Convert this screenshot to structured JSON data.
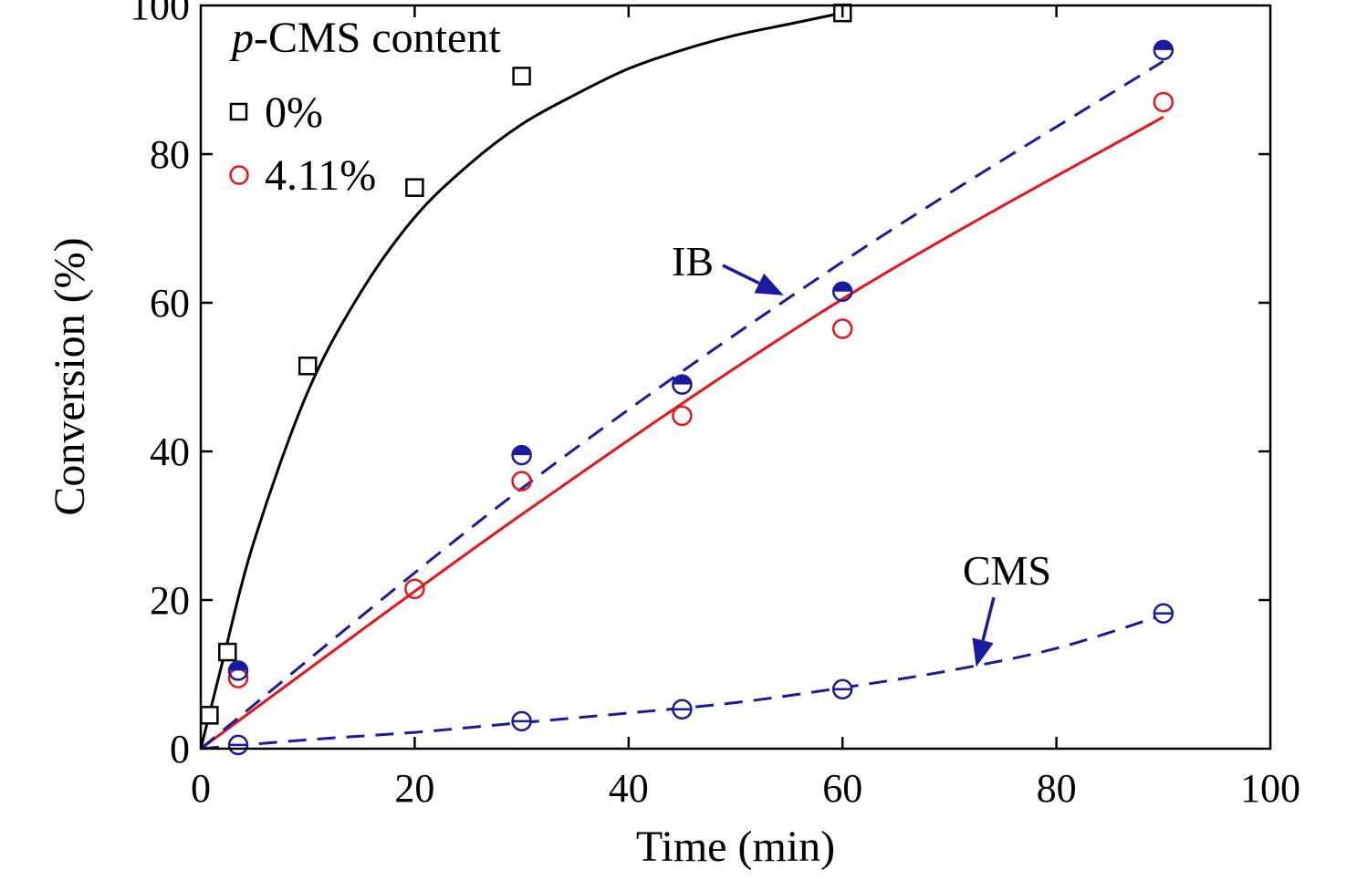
{
  "chart_data": {
    "type": "scatter",
    "xlabel": "Time (min)",
    "ylabel": "Conversion (%)",
    "xlim": [
      0,
      100
    ],
    "ylim": [
      0,
      100
    ],
    "xticks": [
      0,
      20,
      40,
      60,
      80,
      100
    ],
    "yticks": [
      0,
      20,
      40,
      60,
      80,
      100
    ],
    "grid": false,
    "legend": {
      "title_italic": "p",
      "title_rest": "-CMS content",
      "placement": "top-left",
      "entries": [
        "0%",
        "4.11%"
      ]
    },
    "series": [
      {
        "name": "0%",
        "marker": "square",
        "color": "#000000",
        "points": [
          [
            0.8,
            4.5
          ],
          [
            2.5,
            13
          ],
          [
            10,
            51.5
          ],
          [
            20,
            75.5
          ],
          [
            30,
            90.5
          ],
          [
            60,
            99
          ]
        ],
        "fit_style": "solid",
        "fit": [
          [
            0,
            0
          ],
          [
            2,
            11.5
          ],
          [
            5,
            28
          ],
          [
            10,
            48
          ],
          [
            15,
            61.5
          ],
          [
            20,
            71.5
          ],
          [
            25,
            78.5
          ],
          [
            30,
            84
          ],
          [
            35,
            88
          ],
          [
            40,
            91.5
          ],
          [
            45,
            94
          ],
          [
            50,
            96
          ],
          [
            55,
            97.5
          ],
          [
            60,
            99
          ]
        ]
      },
      {
        "name": "4.11%",
        "marker": "circle",
        "color": "#e8141c",
        "points": [
          [
            3.5,
            9.5
          ],
          [
            20,
            21.5
          ],
          [
            30,
            36
          ],
          [
            45,
            44.8
          ],
          [
            60,
            56.5
          ],
          [
            90,
            87
          ]
        ],
        "fit_style": "solid",
        "fit": [
          [
            0,
            0
          ],
          [
            30,
            31.5
          ],
          [
            60,
            60.5
          ],
          [
            90,
            85
          ]
        ]
      },
      {
        "name": "IB",
        "marker": "half-filled-circle",
        "color": "#1a1a9e",
        "points": [
          [
            3.5,
            10.5
          ],
          [
            30,
            39.5
          ],
          [
            45,
            49
          ],
          [
            60,
            61.5
          ],
          [
            90,
            94
          ]
        ],
        "fit_style": "dashed",
        "fit": [
          [
            0,
            0
          ],
          [
            30,
            35
          ],
          [
            60,
            65.5
          ],
          [
            90,
            92.5
          ]
        ]
      },
      {
        "name": "CMS",
        "marker": "crossed-circle",
        "color": "#1a1a9e",
        "points": [
          [
            3.5,
            0.5
          ],
          [
            30,
            3.7
          ],
          [
            45,
            5.3
          ],
          [
            60,
            8
          ],
          [
            90,
            18.2
          ]
        ],
        "fit_style": "dashed",
        "fit": [
          [
            0,
            0
          ],
          [
            10,
            1.2
          ],
          [
            20,
            2.2
          ],
          [
            30,
            3.5
          ],
          [
            40,
            4.8
          ],
          [
            50,
            6.2
          ],
          [
            60,
            8.2
          ],
          [
            70,
            10.5
          ],
          [
            80,
            13.5
          ],
          [
            90,
            18
          ]
        ]
      }
    ],
    "annotations": [
      {
        "text": "IB",
        "at": [
          57,
          72
        ],
        "arrow_to": [
          54.5,
          61
        ]
      },
      {
        "text": "CMS",
        "at": [
          93,
          25
        ],
        "arrow_to": [
          72.5,
          11
        ]
      }
    ]
  }
}
